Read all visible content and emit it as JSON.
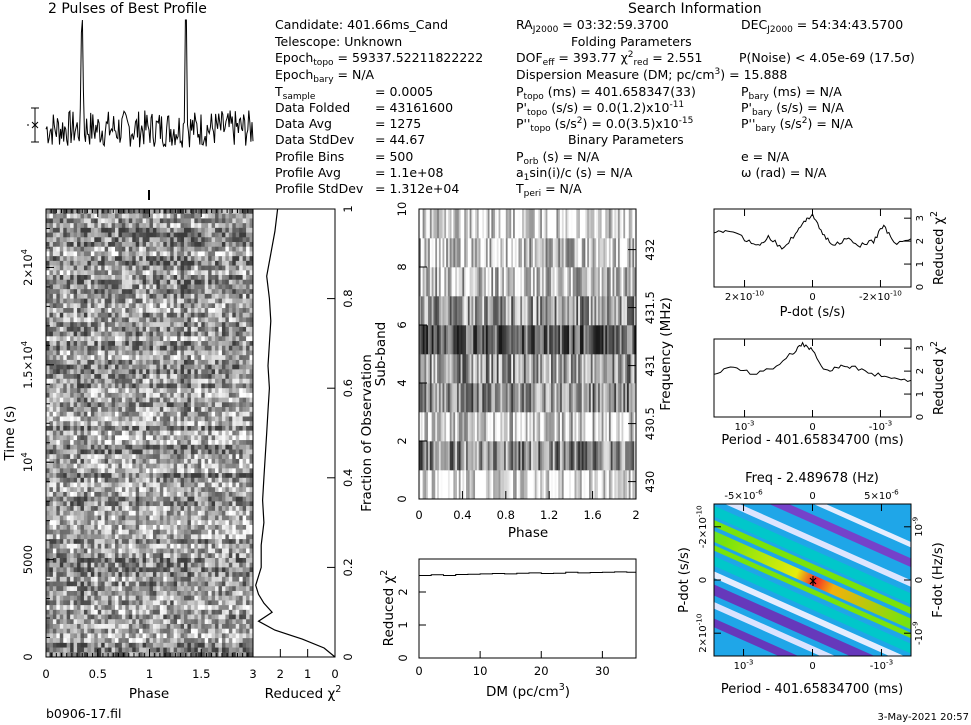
{
  "figure_title": "2 Pulses of Best Profile",
  "search_title": "Search Information",
  "folding_title": "Folding Parameters",
  "binary_title": "Binary Parameters",
  "col1": [
    {
      "label": "Candidate:  401.66ms_Cand",
      "sub": "",
      "value": ""
    },
    {
      "label": "Telescope:  Unknown",
      "sub": "",
      "value": ""
    },
    {
      "label": "Epoch",
      "sub": "topo",
      "value": " = 59337.52211822222"
    },
    {
      "label": "Epoch",
      "sub": "bary",
      "value": " = N/A"
    },
    {
      "label": "T",
      "sub": "sample",
      "value": "= 0.0005"
    },
    {
      "label": "Data Folded",
      "sub": "",
      "value": "= 43161600"
    },
    {
      "label": "Data Avg",
      "sub": "",
      "value": "= 1275"
    },
    {
      "label": "Data StdDev",
      "sub": "",
      "value": "= 44.67"
    },
    {
      "label": "Profile Bins",
      "sub": "",
      "value": "= 500"
    },
    {
      "label": "Profile Avg",
      "sub": "",
      "value": "= 1.1e+08"
    },
    {
      "label": "Profile StdDev",
      "sub": "",
      "value": "= 1.312e+04"
    }
  ],
  "search": {
    "ra_label": "RA",
    "ra_sub": "J2000",
    "ra_value": " = 03:32:59.3700",
    "dec_label": "DEC",
    "dec_sub": "J2000",
    "dec_value": " = 54:34:43.5700",
    "dof_label": "DOF",
    "dof_sub": "eff",
    "dof_value": " = 393.77",
    "chi_label": "χ",
    "chi_sup": "2",
    "chi_sub": "red",
    "chi_value": " = 2.551",
    "pnoise": "P(Noise) < 4.05e-69   (17.5σ)",
    "dm_line": "Dispersion Measure (DM; pc/cm",
    "dm_sup": "3",
    "dm_value": ") = 15.888",
    "ptopo_label": "P",
    "ptopo_sub": "topo",
    "ptopo_value": " (ms)  =  401.658347(33)",
    "pbary_label": "P",
    "pbary_sub": "bary",
    "pbary_value": " (ms) = N/A",
    "pdtopo_label": "P'",
    "pdtopo_sub": "topo",
    "pdtopo_value": " (s/s)  = 0.0(1.2)x10",
    "pdtopo_exp": "-11",
    "pdbary_label": "P'",
    "pdbary_sub": "bary",
    "pdbary_value": " (s/s) = N/A",
    "pddtopo_label": "P''",
    "pddtopo_sub": "topo",
    "pddtopo_value": " (s/s",
    "pddtopo_sup": "2",
    "pddtopo_value2": ") = 0.0(3.5)x10",
    "pddtopo_exp": "-15",
    "pddbary_label": "P''",
    "pddbary_sub": "bary",
    "pddbary_value": " (s/s",
    "pddbary_sup": "2",
    "pddbary_value2": ") = N/A",
    "porb_label": "P",
    "porb_sub": "orb",
    "porb_value": " (s) = N/A",
    "e_line": "e = N/A",
    "a1_label": "a",
    "a1_sub": "1",
    "a1_value": "sin(i)/c (s) = N/A",
    "omega_line": "ω (rad) = N/A",
    "tperi_label": "T",
    "tperi_sub": "peri",
    "tperi_value": " = N/A"
  },
  "footer_left": "b0906-17.fil",
  "footer_right": "3-May-2021 20:57",
  "chart_data": [
    {
      "type": "line",
      "title": "2 Pulses of Best Profile",
      "description_phase_range": [
        0,
        2
      ],
      "pulse_centers_phase": [
        0.35,
        1.35
      ],
      "xlabel": "",
      "ylabel": ""
    },
    {
      "type": "heatmap",
      "xlabel": "Phase",
      "ylabel": "Time (s)",
      "xlim": [
        0,
        2
      ],
      "ylim": [
        0,
        23000
      ],
      "x_ticks": [
        "0",
        "0.5",
        "1",
        "1.5"
      ],
      "y_ticks": [
        "0",
        "5000",
        "10^4",
        "1.5×10^4",
        "2×10^4"
      ]
    },
    {
      "type": "line",
      "xlabel": "Reduced χ2",
      "ylabel": "Fraction of Observation",
      "xlim": [
        3,
        0
      ],
      "ylim": [
        0,
        1
      ],
      "x_ticks": [
        "3",
        "2",
        "1",
        "0"
      ],
      "y_ticks": [
        "0",
        "0.2",
        "0.4",
        "0.6",
        "0.8",
        "1"
      ],
      "points": [
        [
          0.0,
          0.0
        ],
        [
          0.4,
          0.02
        ],
        [
          1.2,
          0.04
        ],
        [
          2.2,
          0.06
        ],
        [
          2.8,
          0.08
        ],
        [
          2.3,
          0.1
        ],
        [
          2.6,
          0.12
        ],
        [
          2.8,
          0.14
        ],
        [
          2.9,
          0.16
        ],
        [
          2.7,
          0.2
        ],
        [
          2.7,
          0.25
        ],
        [
          2.6,
          0.3
        ],
        [
          2.65,
          0.35
        ],
        [
          2.6,
          0.4
        ],
        [
          2.55,
          0.45
        ],
        [
          2.5,
          0.5
        ],
        [
          2.45,
          0.55
        ],
        [
          2.4,
          0.6
        ],
        [
          2.45,
          0.65
        ],
        [
          2.4,
          0.7
        ],
        [
          2.35,
          0.75
        ],
        [
          2.4,
          0.8
        ],
        [
          2.5,
          0.85
        ],
        [
          2.35,
          0.9
        ],
        [
          2.2,
          0.95
        ],
        [
          2.1,
          1.0
        ]
      ]
    },
    {
      "type": "heatmap",
      "xlabel": "Phase",
      "ylabel": "Sub-band",
      "y2label": "Frequency (MHz)",
      "xlim": [
        0,
        2
      ],
      "ylim": [
        0,
        10
      ],
      "x_ticks": [
        "0",
        "0.4",
        "0.8",
        "1.2",
        "1.6",
        "2"
      ],
      "y_ticks": [
        "0",
        "2",
        "4",
        "6",
        "8",
        "10"
      ],
      "y2_ticks": [
        "430",
        "430.5",
        "431",
        "431.5",
        "432"
      ]
    },
    {
      "type": "line",
      "xlabel": "DM (pc/cm3)",
      "ylabel": "Reduced χ2",
      "xlim": [
        0,
        35.5
      ],
      "ylim": [
        0,
        3
      ],
      "x_ticks": [
        "0",
        "10",
        "20",
        "30"
      ],
      "y_ticks": [
        "0",
        "1",
        "2"
      ],
      "x": [
        0,
        2,
        4,
        6,
        8,
        10,
        12,
        14,
        16,
        18,
        20,
        22,
        24,
        26,
        28,
        30,
        32,
        34,
        35.5
      ],
      "values": [
        2.5,
        2.52,
        2.5,
        2.53,
        2.54,
        2.55,
        2.56,
        2.55,
        2.57,
        2.58,
        2.56,
        2.57,
        2.6,
        2.58,
        2.59,
        2.6,
        2.61,
        2.6,
        2.62
      ]
    },
    {
      "type": "line",
      "xlabel": "P-dot (s/s)",
      "ylabel": "Reduced χ2",
      "xlim": [
        2.9e-10,
        -2.9e-10
      ],
      "ylim": [
        0,
        3.4
      ],
      "x_ticks": [
        "2×10^-10",
        "0",
        "-2×10^-10"
      ],
      "y_ticks": [
        "0",
        "1",
        "2",
        "3"
      ],
      "x": [
        2.9e-10,
        2.5e-10,
        2e-10,
        1.6e-10,
        1.3e-10,
        9e-11,
        5e-11,
        2e-11,
        0,
        -3e-11,
        -6e-11,
        -1e-10,
        -1.4e-10,
        -1.8e-10,
        -2.1e-10,
        -2.4e-10,
        -2.9e-10
      ],
      "values": [
        2.3,
        2.5,
        2.1,
        1.8,
        2.2,
        1.7,
        2.3,
        2.9,
        3.2,
        2.3,
        1.8,
        2.1,
        1.8,
        2.0,
        2.7,
        1.9,
        2.1
      ]
    },
    {
      "type": "line",
      "xlabel": "Period - 401.65834700 (ms)",
      "ylabel": "Reduced χ2",
      "xlim": [
        0.0015,
        -0.0015
      ],
      "ylim": [
        0,
        3.4
      ],
      "x_ticks": [
        "10^-3",
        "0",
        "-10^-3"
      ],
      "y_ticks": [
        "0",
        "1",
        "2",
        "3"
      ],
      "x": [
        0.0015,
        0.0012,
        0.0009,
        0.0006,
        0.0003,
        0.00015,
        0,
        -0.0002,
        -0.0004,
        -0.0006,
        -0.0009,
        -0.0012,
        -0.0015
      ],
      "values": [
        1.9,
        2.2,
        1.9,
        2.1,
        2.8,
        3.2,
        2.9,
        2.0,
        2.2,
        2.2,
        1.9,
        1.7,
        1.6
      ]
    },
    {
      "type": "heatmap",
      "title": "Freq - 2.489678 (Hz)",
      "xlabel": "Period - 401.65834700 (ms)",
      "ylabel": "P-dot (s/s)",
      "y2label": "F-dot (Hz/s)",
      "x_ticks": [
        "10^-3",
        "0",
        "-10^-3"
      ],
      "x2_ticks": [
        "-5×10^-6",
        "0",
        "5×10^-6"
      ],
      "y_ticks": [
        "2×10^-10",
        "0",
        "-2×10^-10"
      ],
      "y2_ticks": [
        "-10^-9",
        "0",
        "10^-9"
      ]
    }
  ]
}
